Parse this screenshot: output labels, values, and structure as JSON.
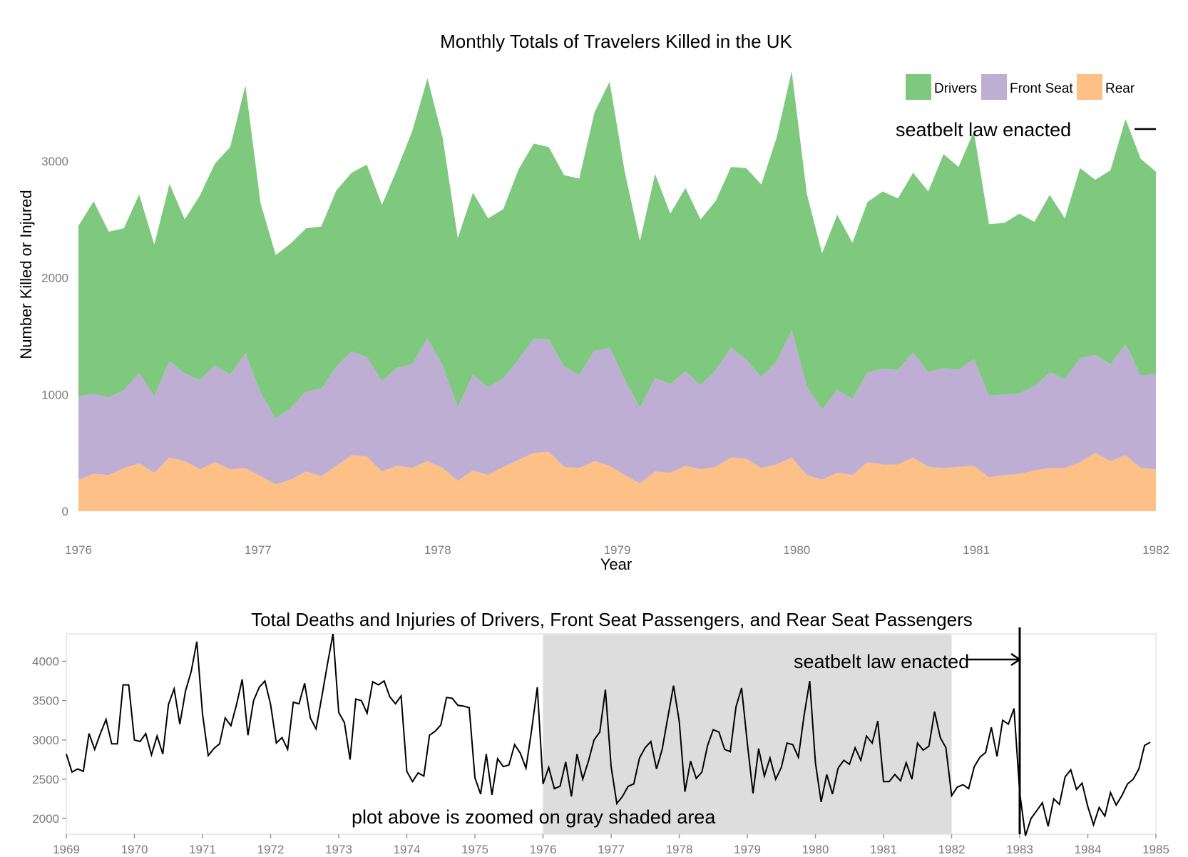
{
  "chart_data": [
    {
      "type": "area",
      "stacked": true,
      "title": "Monthly Totals of Travelers Killed in the UK",
      "xlabel": "Year",
      "ylabel": "Number Killed or Injured",
      "xlim": [
        1976,
        1982
      ],
      "ylim": [
        0,
        3800
      ],
      "x_ticks": [
        "1976",
        "1977",
        "1978",
        "1979",
        "1980",
        "1981",
        "1982"
      ],
      "y_ticks": [
        "0",
        "1000",
        "2000",
        "3000"
      ],
      "grid": false,
      "legend_position": "top-right",
      "annotation": "seatbelt law enacted",
      "series": [
        {
          "name": "Rear",
          "color": "#fdc086",
          "values": [
            270,
            320,
            310,
            370,
            410,
            330,
            460,
            430,
            360,
            420,
            360,
            370,
            300,
            230,
            270,
            340,
            300,
            390,
            480,
            470,
            340,
            390,
            370,
            430,
            370,
            260,
            350,
            310,
            380,
            440,
            500,
            510,
            380,
            370,
            430,
            390,
            310,
            240,
            340,
            330,
            390,
            360,
            380,
            460,
            450,
            370,
            400,
            460,
            310,
            270,
            330,
            310,
            420,
            400,
            400,
            460,
            380,
            370,
            380,
            390,
            290,
            310,
            320,
            350,
            370,
            370,
            420,
            500,
            430,
            480,
            370,
            360
          ]
        },
        {
          "name": "Front Seat",
          "color": "#beaed4",
          "values": [
            715,
            685,
            665,
            665,
            775,
            655,
            825,
            750,
            765,
            830,
            810,
            985,
            715,
            565,
            615,
            685,
            750,
            850,
            890,
            850,
            775,
            840,
            890,
            1050,
            880,
            630,
            820,
            750,
            760,
            860,
            980,
            960,
            860,
            800,
            945,
            1010,
            820,
            645,
            800,
            760,
            810,
            720,
            830,
            940,
            850,
            780,
            880,
            1090,
            760,
            600,
            710,
            650,
            770,
            820,
            810,
            900,
            810,
            860,
            830,
            915,
            700,
            690,
            690,
            720,
            820,
            760,
            890,
            840,
            830,
            950,
            790,
            820
          ]
        },
        {
          "name": "Drivers",
          "color": "#7fc97f",
          "values": [
            1460,
            1650,
            1420,
            1390,
            1530,
            1300,
            1520,
            1320,
            1580,
            1730,
            1950,
            2295,
            1625,
            1400,
            1410,
            1400,
            1390,
            1510,
            1530,
            1650,
            1510,
            1700,
            2000,
            2230,
            1950,
            1450,
            1560,
            1450,
            1450,
            1630,
            1670,
            1650,
            1640,
            1680,
            2040,
            2280,
            1780,
            1430,
            1750,
            1460,
            1570,
            1420,
            1450,
            1550,
            1640,
            1650,
            1920,
            2220,
            1650,
            1340,
            1500,
            1340,
            1460,
            1520,
            1470,
            1540,
            1550,
            1830,
            1740,
            1950,
            1470,
            1470,
            1540,
            1410,
            1520,
            1380,
            1630,
            1500,
            1660,
            1930,
            1860,
            1730
          ]
        }
      ]
    },
    {
      "type": "line",
      "title": "Total Deaths and Injuries of Drivers, Front Seat Passengers, and Rear Seat Passengers",
      "xlim": [
        1969,
        1985
      ],
      "ylim": [
        1800,
        4350
      ],
      "x_ticks": [
        "1969",
        "1970",
        "1971",
        "1972",
        "1973",
        "1974",
        "1975",
        "1976",
        "1977",
        "1978",
        "1979",
        "1980",
        "1981",
        "1982",
        "1983",
        "1984",
        "1985"
      ],
      "y_ticks": [
        "2000",
        "2500",
        "3000",
        "3500",
        "4000"
      ],
      "grid": false,
      "shaded_region": [
        1976,
        1982
      ],
      "shaded_label": "plot above is zoomed on gray shaded area",
      "event_x": 1983,
      "event_label": "seatbelt law enacted",
      "series": [
        {
          "name": "",
          "color": "#000000",
          "x_start": 1969,
          "step": 0.08333333,
          "values": [
            2820,
            2590,
            2630,
            2600,
            3080,
            2880,
            3080,
            3260,
            2950,
            2950,
            3700,
            3700,
            3000,
            2980,
            3080,
            2810,
            3050,
            2820,
            3450,
            3650,
            3200,
            3620,
            3870,
            4250,
            3330,
            2800,
            2890,
            2950,
            3280,
            3180,
            3450,
            3770,
            3060,
            3500,
            3670,
            3750,
            3450,
            2960,
            3030,
            2880,
            3480,
            3460,
            3720,
            3280,
            3140,
            3540,
            3960,
            4350,
            3350,
            3220,
            2750,
            3520,
            3500,
            3340,
            3740,
            3700,
            3750,
            3550,
            3460,
            3560,
            2600,
            2470,
            2580,
            2540,
            3060,
            3110,
            3190,
            3540,
            3530,
            3440,
            3430,
            3410,
            2520,
            2310,
            2820,
            2300,
            2760,
            2660,
            2680,
            2940,
            2830,
            2640,
            3130,
            3670,
            2440,
            2650,
            2380,
            2410,
            2720,
            2280,
            2820,
            2500,
            2730,
            3000,
            3100,
            3640,
            2660,
            2190,
            2280,
            2410,
            2440,
            2770,
            2900,
            2980,
            2630,
            2880,
            3290,
            3690,
            3240,
            2340,
            2730,
            2510,
            2590,
            2930,
            3130,
            3100,
            2880,
            2850,
            3420,
            3660,
            2960,
            2320,
            2890,
            2540,
            2770,
            2500,
            2650,
            2960,
            2940,
            2780,
            3310,
            3750,
            2710,
            2210,
            2560,
            2310,
            2640,
            2740,
            2690,
            2900,
            2740,
            3050,
            2960,
            3240,
            2470,
            2470,
            2560,
            2480,
            2710,
            2500,
            2960,
            2870,
            2920,
            3360,
            3030,
            2900,
            2290,
            2400,
            2430,
            2380,
            2660,
            2780,
            2840,
            3160,
            2790,
            3250,
            3200,
            3400,
            2330,
            1780,
            2000,
            2100,
            2200,
            1900,
            2250,
            2180,
            2530,
            2620,
            2370,
            2450,
            2150,
            1920,
            2140,
            2030,
            2330,
            2170,
            2290,
            2440,
            2500,
            2630,
            2930,
            2970
          ]
        }
      ]
    }
  ]
}
